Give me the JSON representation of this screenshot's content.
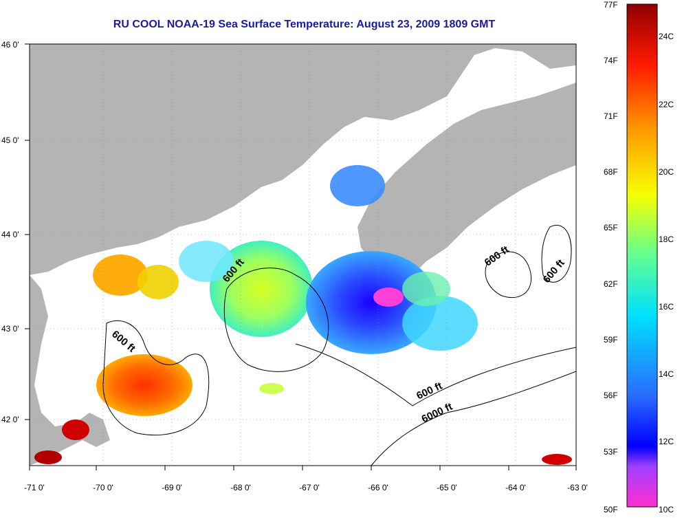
{
  "title": "RU COOL  NOAA-19  Sea Surface Temperature:  August 23, 2009 1809 GMT",
  "map": {
    "lat_labels": [
      "46 0'",
      "45 0'",
      "44 0'",
      "43 0'",
      "42 0'"
    ],
    "lon_labels": [
      "-71 0'",
      "-70 0'",
      "-69 0'",
      "-68 0'",
      "-67 0'",
      "-66 0'",
      "-65 0'",
      "-64 0'",
      "-63 0'"
    ],
    "contour_labels": [
      "600 ft",
      "600 ft",
      "600 ft",
      "600 ft",
      "600 ft",
      "6000 ft"
    ]
  },
  "colorbar": {
    "f_labels": [
      "77F",
      "74F",
      "71F",
      "68F",
      "65F",
      "62F",
      "59F",
      "56F",
      "53F",
      "50F"
    ],
    "c_labels": [
      "24C",
      "22C",
      "20C",
      "18C",
      "16C",
      "14C",
      "12C",
      "10C"
    ]
  },
  "colors": {
    "land": "#b4b4b4",
    "water": "#ffffff",
    "title": "#1a1aa6"
  }
}
